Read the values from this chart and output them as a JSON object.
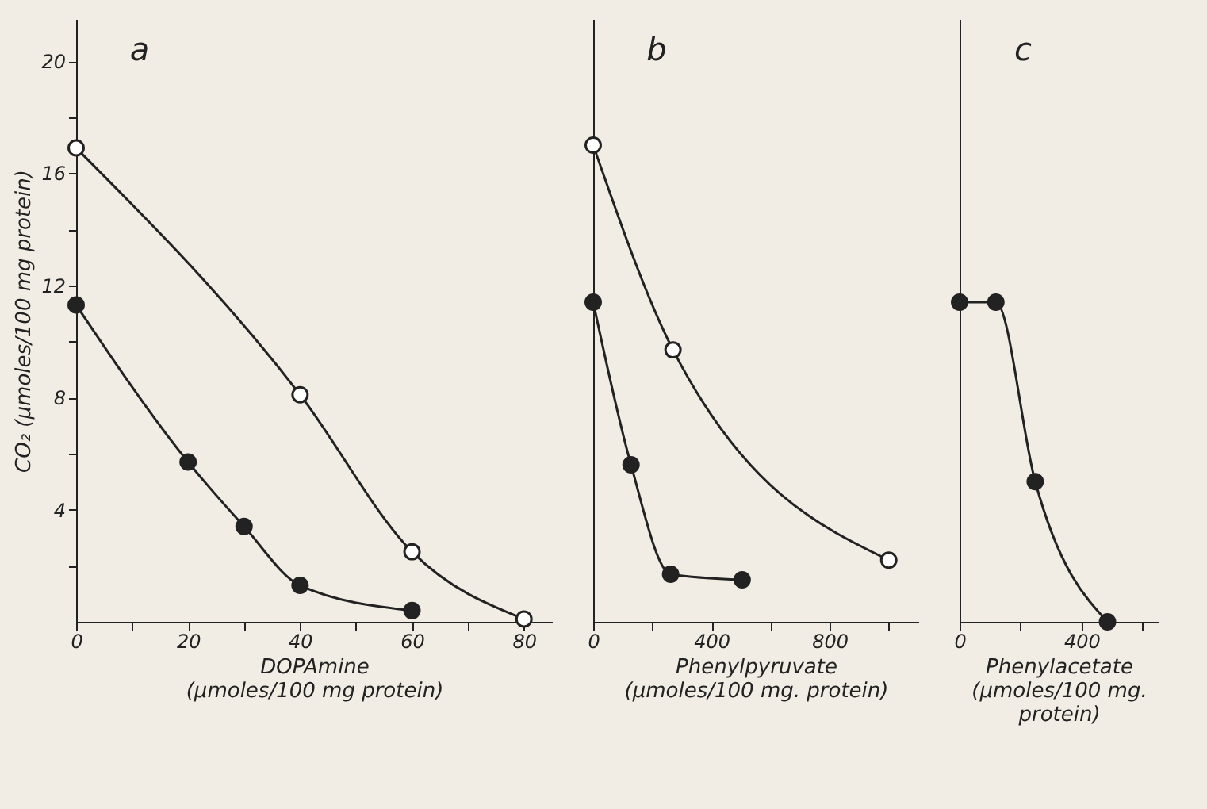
{
  "chart_data": [
    {
      "type": "line",
      "annotations": [
        "a"
      ],
      "xlabel": "DOPAmine\n(µmoles/100 mg protein)",
      "ylabel": "CO₂ (µmoles/100 mg protein)",
      "xlim": [
        0,
        85
      ],
      "xticks": [
        0,
        {
          "value": 10,
          "label": null
        },
        20,
        {
          "value": 30,
          "label": null
        },
        40,
        {
          "value": 50,
          "label": null
        },
        60,
        {
          "value": 70,
          "label": null
        },
        80
      ],
      "ylim": [
        0,
        21.5
      ],
      "yticks": [
        {
          "value": 2,
          "label": null
        },
        4,
        {
          "value": 6,
          "label": null
        },
        8,
        {
          "value": 10,
          "label": null
        },
        12,
        {
          "value": 14,
          "label": null
        },
        16,
        {
          "value": 18,
          "label": null
        },
        20
      ],
      "marker": "circle",
      "grid": false,
      "series": [
        {
          "color": "#ffffff",
          "x": [
            0,
            40,
            60,
            80
          ],
          "values": [
            16.9,
            8.1,
            2.5,
            0.1
          ]
        },
        {
          "color": "#222222",
          "x": [
            0,
            20,
            30,
            40,
            60
          ],
          "values": [
            11.3,
            5.7,
            3.4,
            1.3,
            0.4
          ]
        }
      ]
    },
    {
      "type": "line",
      "annotations": [
        "b"
      ],
      "xlabel": "Phenylpyruvate\n(µmoles/100 mg. protein)",
      "xlim": [
        0,
        1100
      ],
      "xticks": [
        0,
        {
          "value": 200,
          "label": null
        },
        400,
        {
          "value": 600,
          "label": null
        },
        800,
        {
          "value": 1000,
          "label": null
        }
      ],
      "ylim": [
        0,
        21.5
      ],
      "tick_labels": "x",
      "marker": "circle",
      "grid": false,
      "series": [
        {
          "color": "#ffffff",
          "x": [
            0,
            270,
            1000
          ],
          "values": [
            17.0,
            9.7,
            2.2
          ]
        },
        {
          "color": "#222222",
          "x": [
            0,
            128,
            262,
            504
          ],
          "values": [
            11.4,
            5.6,
            1.7,
            1.5
          ]
        }
      ]
    },
    {
      "type": "line",
      "annotations": [
        "c"
      ],
      "xlabel": "Phenylacetate\n(µmoles/100 mg.\nprotein)",
      "xlim": [
        0,
        650
      ],
      "xticks": [
        0,
        {
          "value": 200,
          "label": null
        },
        400,
        {
          "value": 600,
          "label": null
        }
      ],
      "ylim": [
        0,
        21.5
      ],
      "tick_labels": "x",
      "marker": "circle",
      "grid": false,
      "series": [
        {
          "color": "#222222",
          "x": [
            0,
            119,
            248,
            485
          ],
          "values": [
            11.4,
            11.4,
            5.0,
            0.0
          ]
        }
      ]
    }
  ]
}
